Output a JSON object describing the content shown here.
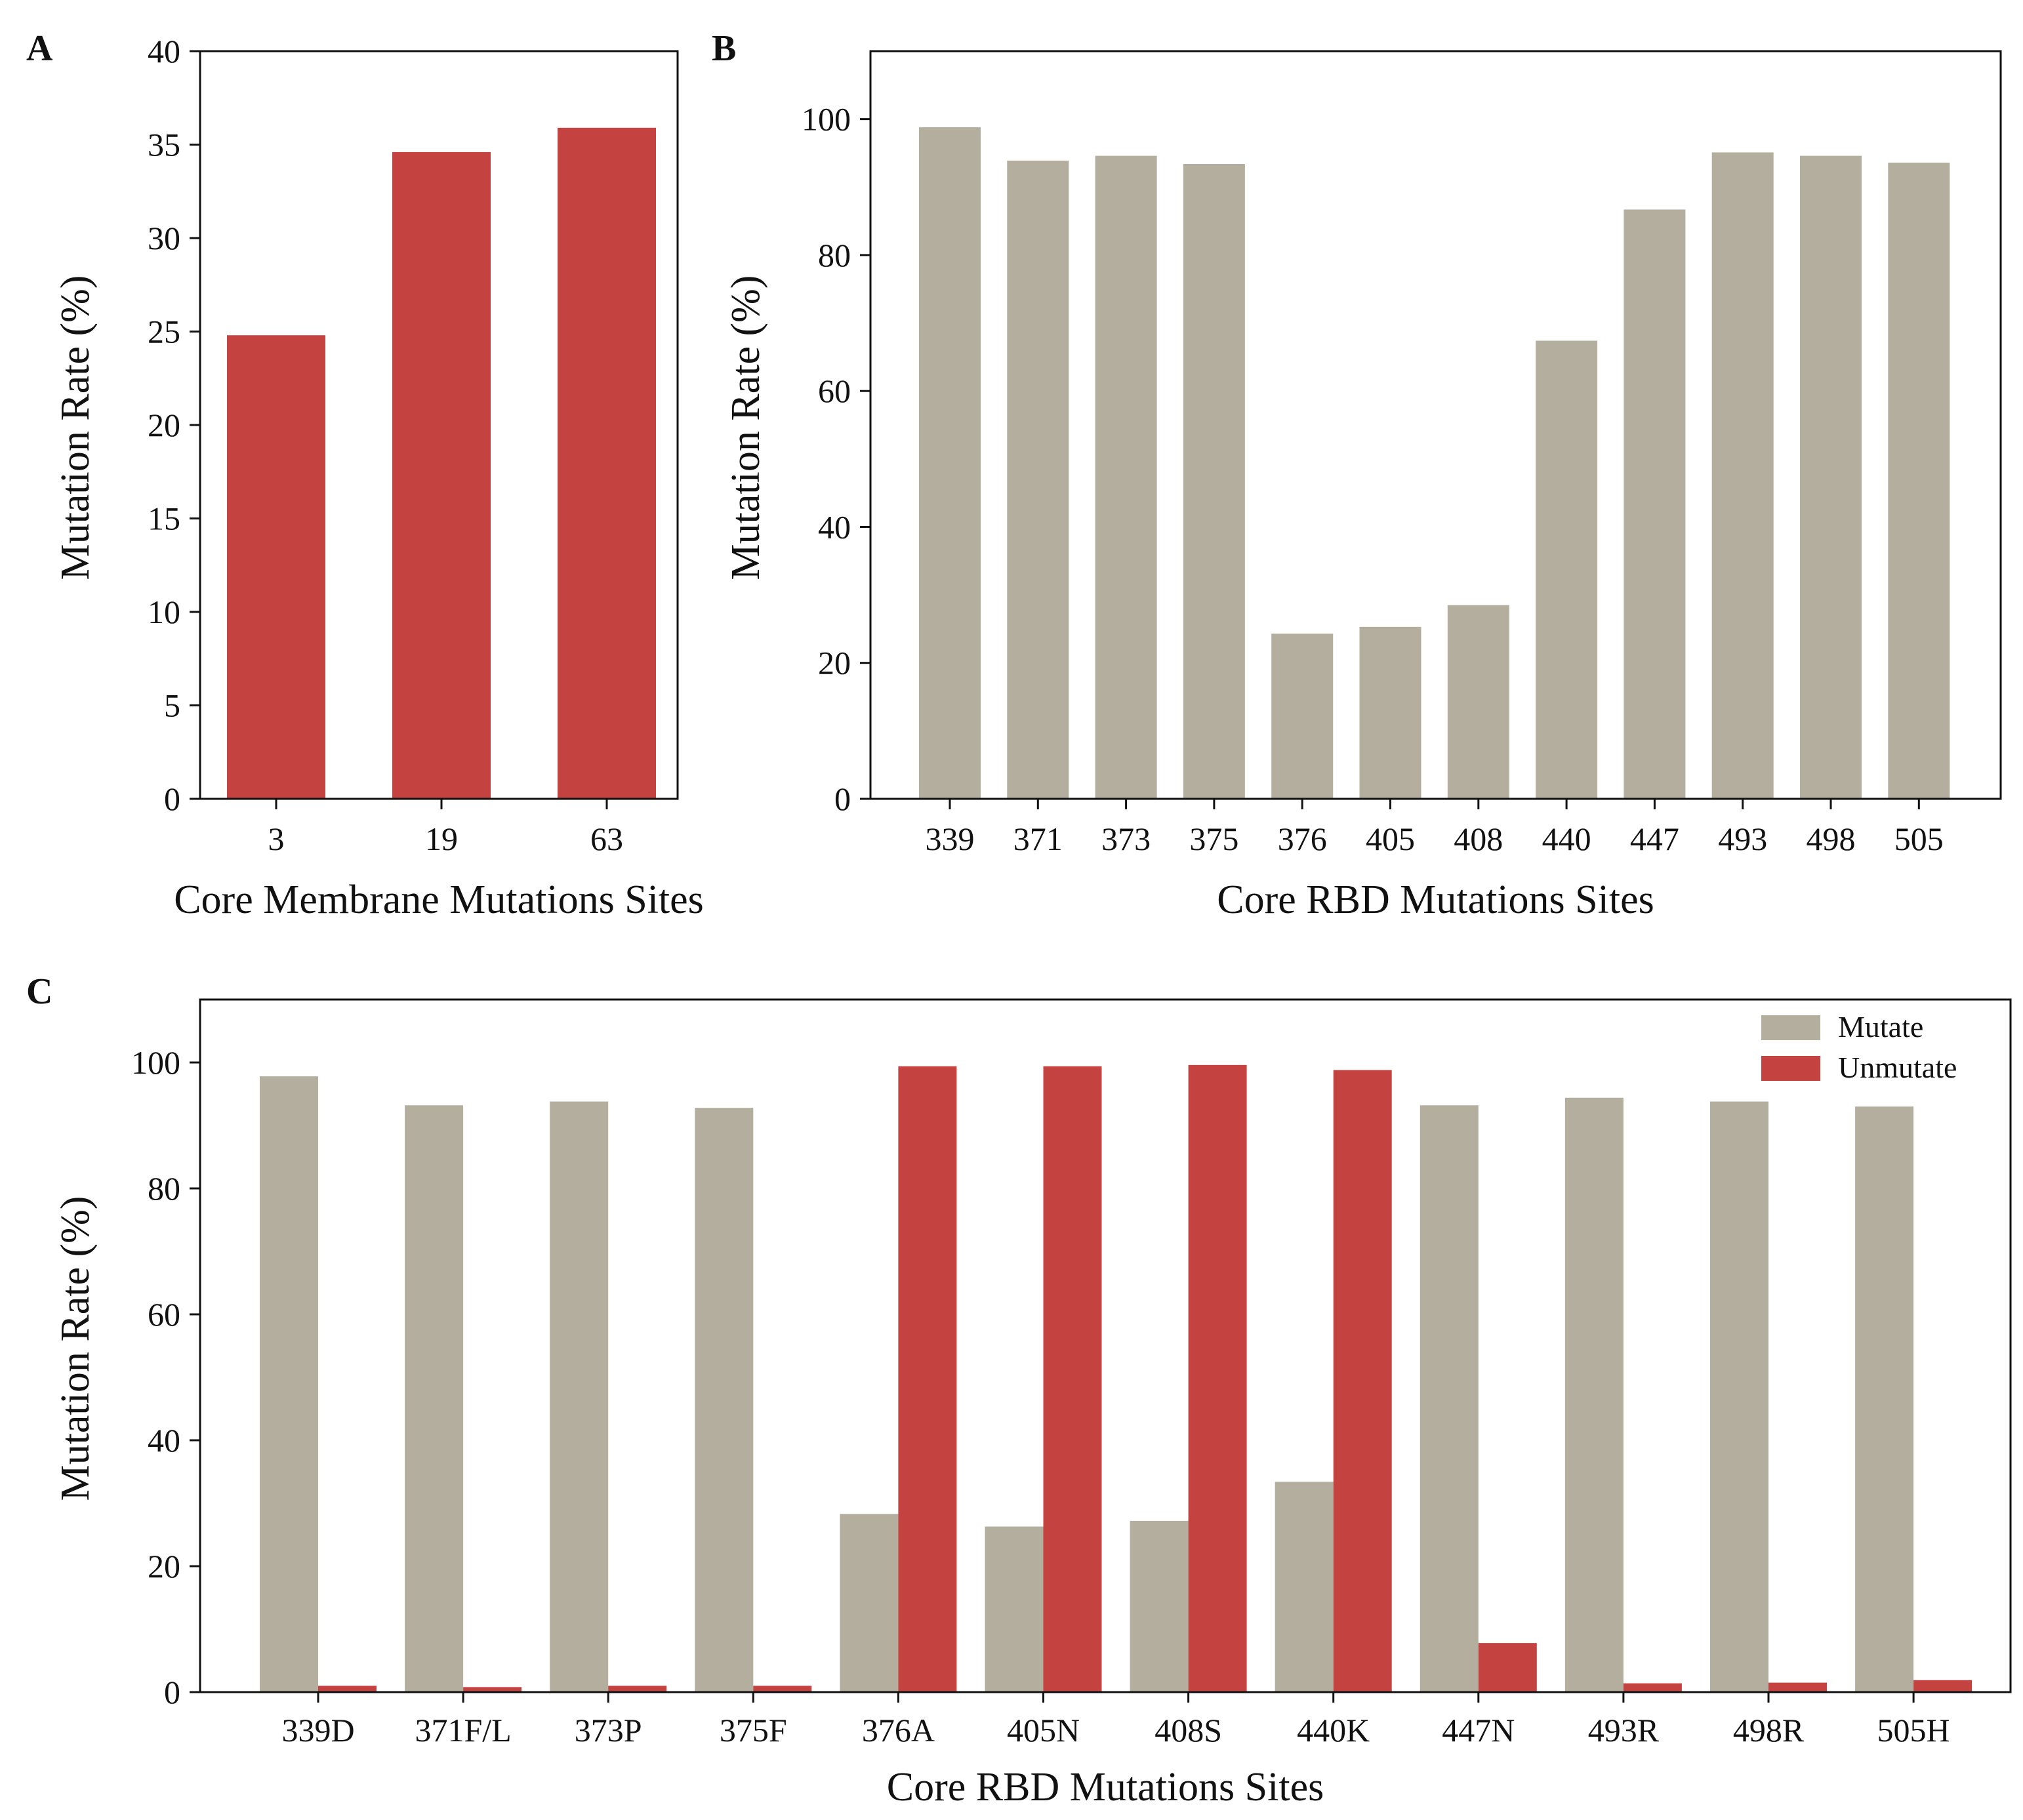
{
  "chart_data": [
    {
      "panel": "A",
      "type": "bar",
      "title": "",
      "xlabel": "Core Membrane Mutations Sites",
      "ylabel": "Mutation Rate (%)",
      "ylim": [
        0,
        40
      ],
      "yticks": [
        0,
        5,
        10,
        15,
        20,
        25,
        30,
        35,
        40
      ],
      "categories": [
        "3",
        "19",
        "63"
      ],
      "values": [
        24.8,
        34.6,
        35.9
      ],
      "color": "#c44341"
    },
    {
      "panel": "B",
      "type": "bar",
      "title": "",
      "xlabel": "Core RBD Mutations Sites",
      "ylabel": "Mutation Rate (%)",
      "ylim": [
        0,
        110
      ],
      "yticks": [
        0,
        20,
        40,
        60,
        80,
        100
      ],
      "categories": [
        "339",
        "371",
        "373",
        "375",
        "376",
        "405",
        "408",
        "440",
        "447",
        "493",
        "498",
        "505"
      ],
      "values": [
        98.8,
        93.9,
        94.6,
        93.4,
        24.3,
        25.3,
        28.5,
        67.4,
        86.7,
        95.1,
        94.6,
        93.6
      ],
      "color": "#b3ae9e"
    },
    {
      "panel": "C",
      "type": "bar",
      "title": "",
      "xlabel": "Core RBD Mutations Sites",
      "ylabel": "Mutation Rate (%)",
      "ylim": [
        0,
        110
      ],
      "yticks": [
        0,
        20,
        40,
        60,
        80,
        100
      ],
      "categories": [
        "339D",
        "371F/L",
        "373P",
        "375F",
        "376A",
        "405N",
        "408S",
        "440K",
        "447N",
        "493R",
        "498R",
        "505H"
      ],
      "series": [
        {
          "name": "Mutate",
          "color": "#b3ae9e",
          "values": [
            97.8,
            93.2,
            93.8,
            92.8,
            28.3,
            26.3,
            27.2,
            33.4,
            93.2,
            94.4,
            93.8,
            93.0
          ]
        },
        {
          "name": "Unmutate",
          "color": "#c44341",
          "values": [
            1.0,
            0.8,
            1.0,
            1.0,
            99.4,
            99.4,
            99.6,
            98.8,
            7.8,
            1.4,
            1.5,
            1.9
          ]
        }
      ],
      "legend": "top-right"
    }
  ]
}
